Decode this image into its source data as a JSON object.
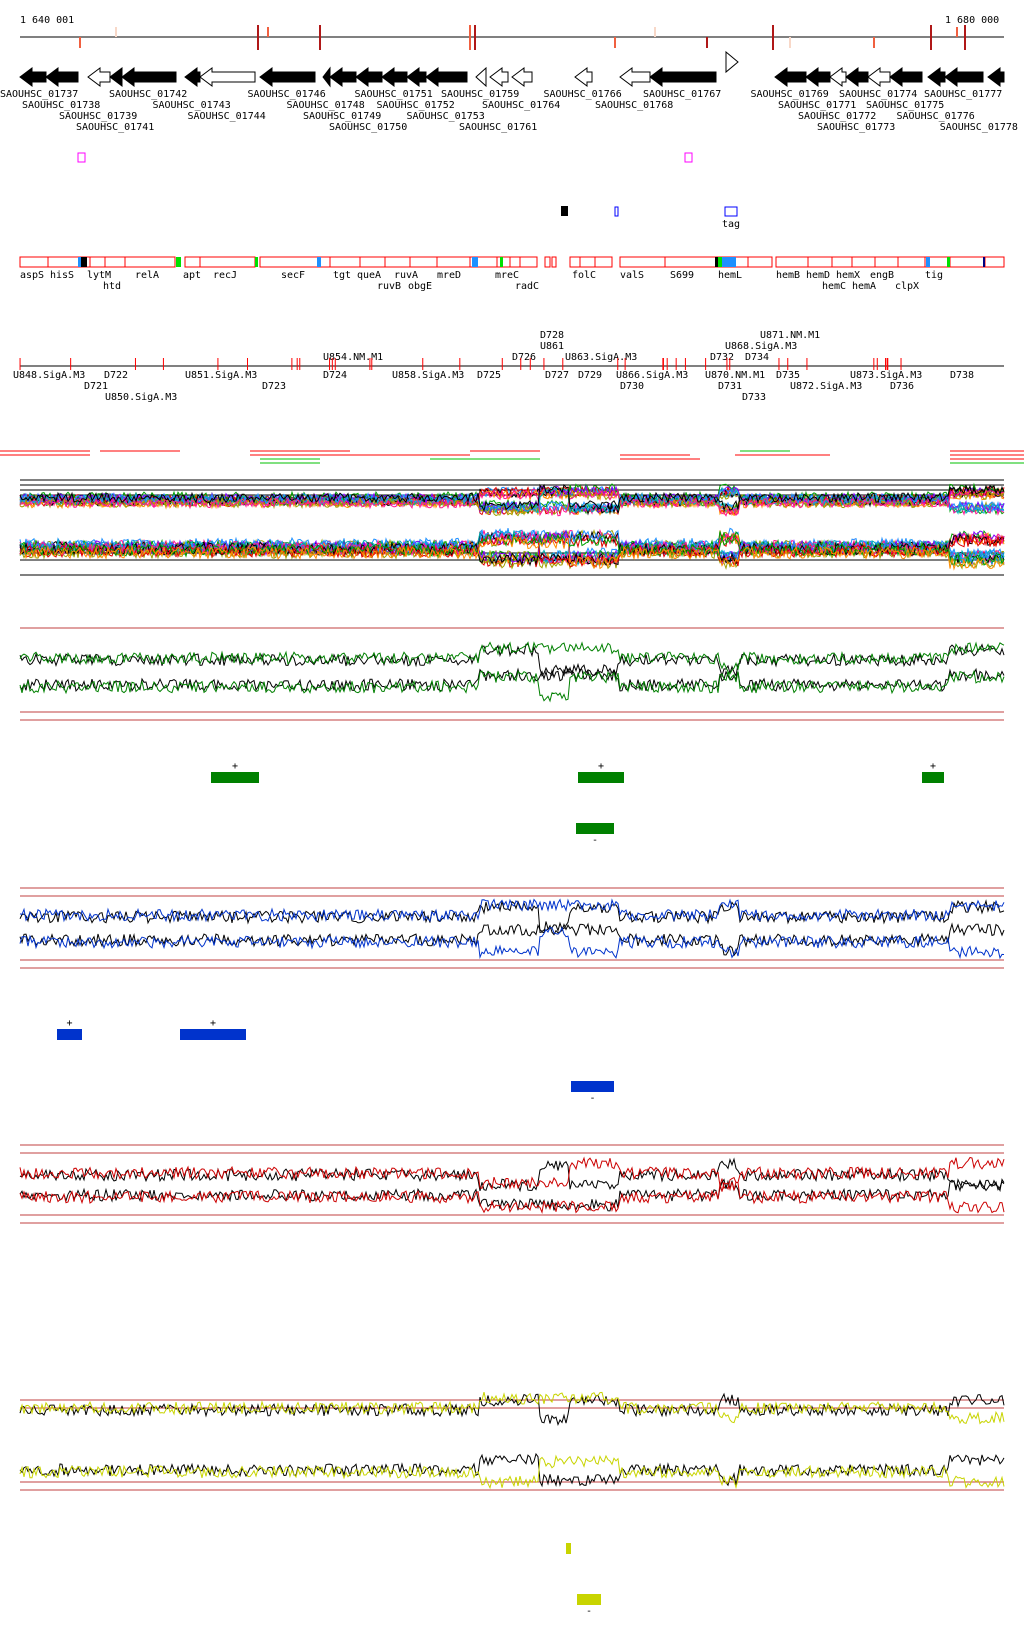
{
  "ruler": {
    "start_label": "1 640 001",
    "end_label": "1 680 000"
  },
  "genes": [
    {
      "name": "SAOUHSC_01737",
      "strand": "-",
      "filled": true
    },
    {
      "name": "SAOUHSC_01738",
      "strand": "-",
      "filled": true
    },
    {
      "name": "SAOUHSC_01739",
      "strand": "-",
      "filled": false
    },
    {
      "name": "SAOUHSC_01741",
      "strand": "-",
      "filled": true
    },
    {
      "name": "SAOUHSC_01742",
      "strand": "-",
      "filled": true
    },
    {
      "name": "SAOUHSC_01743",
      "strand": "-",
      "filled": true
    },
    {
      "name": "SAOUHSC_01744",
      "strand": "-",
      "filled": false
    },
    {
      "name": "SAOUHSC_01746",
      "strand": "-",
      "filled": true
    },
    {
      "name": "SAOUHSC_01748",
      "strand": "-",
      "filled": true
    },
    {
      "name": "SAOUHSC_01749",
      "strand": "-",
      "filled": true
    },
    {
      "name": "SAOUHSC_01750",
      "strand": "-",
      "filled": true
    },
    {
      "name": "SAOUHSC_01751",
      "strand": "-",
      "filled": true
    },
    {
      "name": "SAOUHSC_01752",
      "strand": "-",
      "filled": true
    },
    {
      "name": "SAOUHSC_01753",
      "strand": "-",
      "filled": true
    },
    {
      "name": "SAOUHSC_01759",
      "strand": "-",
      "filled": false
    },
    {
      "name": "SAOUHSC_01761",
      "strand": "-",
      "filled": false
    },
    {
      "name": "SAOUHSC_01764",
      "strand": "-",
      "filled": false
    },
    {
      "name": "SAOUHSC_01766",
      "strand": "-",
      "filled": false
    },
    {
      "name": "SAOUHSC_01767",
      "strand": "-",
      "filled": true
    },
    {
      "name": "SAOUHSC_01768",
      "strand": "-",
      "filled": false
    },
    {
      "name": "SAOUHSC_01769",
      "strand": "-",
      "filled": true
    },
    {
      "name": "SAOUHSC_01771",
      "strand": "-",
      "filled": true
    },
    {
      "name": "SAOUHSC_01772",
      "strand": "-",
      "filled": false
    },
    {
      "name": "SAOUHSC_01773",
      "strand": "-",
      "filled": true
    },
    {
      "name": "SAOUHSC_01774",
      "strand": "-",
      "filled": false
    },
    {
      "name": "SAOUHSC_01775",
      "strand": "-",
      "filled": true
    },
    {
      "name": "SAOUHSC_01776",
      "strand": "-",
      "filled": true
    },
    {
      "name": "SAOUHSC_01777",
      "strand": "-",
      "filled": true
    },
    {
      "name": "SAOUHSC_01778",
      "strand": "-",
      "filled": true
    }
  ],
  "tag_label": "tag",
  "operon_labels": [
    "aspS",
    "hisS",
    "lytM",
    "htd",
    "relA",
    "apt",
    "recJ",
    "secF",
    "tgt",
    "queA",
    "ruvB",
    "ruvA",
    "obgE",
    "mreD",
    "mreC",
    "radC",
    "folC",
    "valS",
    "S699",
    "hemL",
    "hemB",
    "hemD",
    "hemC",
    "hemX",
    "hemA",
    "engB",
    "clpX",
    "tig"
  ],
  "promoters_above": [
    "U854.NM.M1",
    "U861",
    "U863.SigA.M3",
    "D726",
    "D728",
    "U868.SigA.M3",
    "U871.NM.M1",
    "D732",
    "D734"
  ],
  "promoters_below": [
    "U848.SigA.M3",
    "D721",
    "D722",
    "U850.SigA.M3",
    "U851.SigA.M3",
    "D723",
    "D724",
    "U858.SigA.M3",
    "D725",
    "D727",
    "D729",
    "D730",
    "U866.SigA.M3",
    "D731",
    "D733",
    "U870.NM.M1",
    "D735",
    "U872.SigA.M3",
    "U873.SigA.M3",
    "D736",
    "D738"
  ],
  "tracks": [
    {
      "name": "green",
      "color": "#008000",
      "plus_label": "+",
      "minus_label": "-"
    },
    {
      "name": "blue",
      "color": "#0033cc",
      "plus_label": "+",
      "minus_label": "-"
    },
    {
      "name": "red",
      "color": "#cc0000"
    },
    {
      "name": "yellow",
      "color": "#c8d400",
      "minus_label": "-"
    }
  ]
}
